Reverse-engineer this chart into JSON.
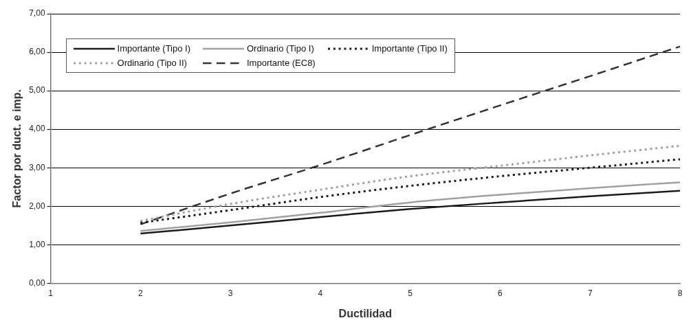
{
  "chart_data": {
    "type": "line",
    "xlabel": "Ductilidad",
    "ylabel": "Factor por duct. e imp.",
    "x": [
      2,
      3,
      4,
      5,
      6,
      7,
      8
    ],
    "xlim": [
      1,
      8
    ],
    "xticks": [
      1,
      2,
      3,
      4,
      5,
      6,
      7,
      8
    ],
    "ylim": [
      0,
      7
    ],
    "yticks": [
      {
        "value": 0,
        "label": "0,00"
      },
      {
        "value": 1,
        "label": "1,00"
      },
      {
        "value": 2,
        "label": "2,00"
      },
      {
        "value": 3,
        "label": "3,00"
      },
      {
        "value": 4,
        "label": "4,00"
      },
      {
        "value": 5,
        "label": "5,00"
      },
      {
        "value": 6,
        "label": "6,00"
      },
      {
        "value": 7,
        "label": "7,00"
      }
    ],
    "grid": "y",
    "legend": "top left",
    "marker": "none",
    "series": [
      {
        "name": "Importante (Tipo I)",
        "color": "#1a1a1a",
        "line_style": "solid",
        "values": [
          1.29,
          1.5,
          1.72,
          1.93,
          2.1,
          2.26,
          2.4
        ]
      },
      {
        "name": "Ordinario (Tipo I)",
        "color": "#a0a0a0",
        "line_style": "solid",
        "values": [
          1.36,
          1.58,
          1.83,
          2.1,
          2.3,
          2.47,
          2.62
        ]
      },
      {
        "name": "Importante (Tipo II)",
        "color": "#1a1a1a",
        "line_style": "dotted",
        "values": [
          1.57,
          1.9,
          2.24,
          2.53,
          2.78,
          3.0,
          3.22
        ]
      },
      {
        "name": "Ordinario (Tipo II)",
        "color": "#a0a0a0",
        "line_style": "dotted",
        "values": [
          1.62,
          2.06,
          2.43,
          2.78,
          3.05,
          3.32,
          3.57
        ]
      },
      {
        "name": "Importante (EC8)",
        "color": "#333333",
        "line_style": "dashed",
        "values": [
          1.53,
          2.33,
          3.07,
          3.85,
          4.62,
          5.38,
          6.15
        ]
      }
    ]
  }
}
